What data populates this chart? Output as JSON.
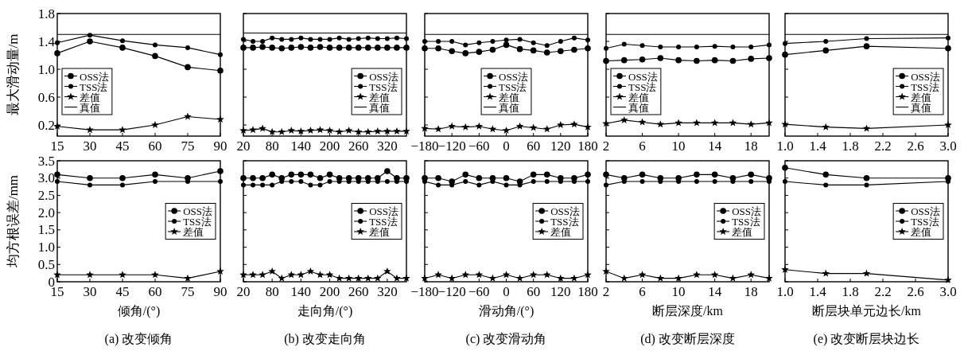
{
  "chart_data": [
    {
      "type": "line",
      "ylabel": "最大滑动量/m",
      "x": [
        15,
        30,
        45,
        60,
        75,
        90
      ],
      "xlim": [
        15,
        90
      ],
      "xticks": [
        15,
        30,
        45,
        60,
        75,
        90
      ],
      "ylim": [
        0.04,
        1.8
      ],
      "yticks": [
        0.2,
        0.6,
        {
          "value": 1,
          "label": "1.0"
        },
        1.4,
        1.8
      ],
      "legend": "lower left",
      "series": [
        {
          "name": "OSS法",
          "color": "#000000",
          "marker": "circle",
          "values": [
            1.23,
            1.4,
            1.31,
            1.19,
            1.03,
            0.98
          ]
        },
        {
          "name": "TSS法",
          "color": "#000000",
          "marker": "circle",
          "values": [
            1.38,
            1.49,
            1.41,
            1.35,
            1.31,
            1.21
          ]
        },
        {
          "name": "差值",
          "color": "#000000",
          "marker": "star",
          "values": [
            0.18,
            0.13,
            0.13,
            0.2,
            0.32,
            0.28
          ]
        },
        {
          "name": "真值",
          "color": "#000000",
          "marker": "none",
          "values": [
            1.5,
            1.5,
            1.5,
            1.5,
            1.5,
            1.5
          ]
        }
      ]
    },
    {
      "type": "line",
      "tick_labels": "x",
      "x": [
        20,
        40,
        60,
        80,
        100,
        120,
        140,
        160,
        180,
        200,
        220,
        240,
        260,
        280,
        300,
        320,
        340,
        360
      ],
      "xlim": [
        20,
        360
      ],
      "xticks": [
        20,
        80,
        140,
        200,
        260,
        320
      ],
      "ylim": [
        0.04,
        1.8
      ],
      "yticks": [
        0.2,
        0.6,
        1,
        1.4,
        1.8
      ],
      "legend": "lower right",
      "series": [
        {
          "name": "OSS法",
          "color": "#000000",
          "marker": "circle",
          "values": [
            1.31,
            1.31,
            1.32,
            1.31,
            1.3,
            1.31,
            1.32,
            1.31,
            1.32,
            1.31,
            1.31,
            1.31,
            1.31,
            1.31,
            1.31,
            1.31,
            1.31,
            1.31
          ]
        },
        {
          "name": "TSS法",
          "color": "#000000",
          "marker": "circle",
          "values": [
            1.43,
            1.4,
            1.4,
            1.45,
            1.43,
            1.43,
            1.45,
            1.43,
            1.43,
            1.43,
            1.45,
            1.43,
            1.44,
            1.45,
            1.44,
            1.44,
            1.45,
            1.44
          ]
        },
        {
          "name": "差值",
          "color": "#000000",
          "marker": "star",
          "values": [
            0.12,
            0.13,
            0.15,
            0.1,
            0.1,
            0.12,
            0.11,
            0.12,
            0.13,
            0.12,
            0.1,
            0.12,
            0.1,
            0.1,
            0.11,
            0.11,
            0.11,
            0.11
          ]
        },
        {
          "name": "真值",
          "color": "#000000",
          "marker": "none",
          "values": [
            1.52,
            1.52,
            1.52,
            1.52,
            1.52,
            1.52,
            1.52,
            1.52,
            1.52,
            1.52,
            1.52,
            1.52,
            1.52,
            1.52,
            1.52,
            1.52,
            1.52,
            1.52
          ]
        }
      ]
    },
    {
      "type": "line",
      "tick_labels": "x",
      "x": [
        -180,
        -150,
        -120,
        -90,
        -60,
        -30,
        0,
        30,
        60,
        90,
        120,
        150,
        180
      ],
      "xlim": [
        -180,
        180
      ],
      "xticks": [
        {
          "value": -180,
          "label": "−180"
        },
        {
          "value": -120,
          "label": "−120"
        },
        {
          "value": -60,
          "label": "−60"
        },
        0,
        60,
        120,
        180
      ],
      "ylim": [
        0.04,
        1.8
      ],
      "yticks": [
        0.2,
        0.6,
        1,
        1.4,
        1.8
      ],
      "legend": "lower center",
      "series": [
        {
          "name": "OSS法",
          "color": "#000000",
          "marker": "circle",
          "values": [
            1.3,
            1.3,
            1.26,
            1.23,
            1.25,
            1.28,
            1.35,
            1.29,
            1.27,
            1.24,
            1.26,
            1.28,
            1.3
          ]
        },
        {
          "name": "TSS法",
          "color": "#000000",
          "marker": "circle",
          "values": [
            1.4,
            1.4,
            1.4,
            1.35,
            1.38,
            1.4,
            1.42,
            1.43,
            1.38,
            1.34,
            1.4,
            1.45,
            1.42
          ]
        },
        {
          "name": "差值",
          "color": "#000000",
          "marker": "star",
          "values": [
            0.15,
            0.14,
            0.18,
            0.17,
            0.18,
            0.14,
            0.12,
            0.18,
            0.16,
            0.14,
            0.2,
            0.21,
            0.17
          ]
        },
        {
          "name": "真值",
          "color": "#000000",
          "marker": "none",
          "values": [
            1.5,
            1.5,
            1.5,
            1.5,
            1.5,
            1.5,
            1.5,
            1.5,
            1.5,
            1.5,
            1.5,
            1.5,
            1.5
          ]
        }
      ]
    },
    {
      "type": "line",
      "tick_labels": "x",
      "x": [
        2,
        4,
        6,
        8,
        10,
        12,
        14,
        16,
        18,
        20
      ],
      "xlim": [
        2,
        20
      ],
      "xticks": [
        2,
        6,
        10,
        14,
        18
      ],
      "ylim": [
        0.04,
        1.8
      ],
      "yticks": [
        0.2,
        0.6,
        1,
        1.4,
        1.8
      ],
      "legend": "lower left",
      "series": [
        {
          "name": "OSS法",
          "color": "#000000",
          "marker": "circle",
          "values": [
            1.12,
            1.13,
            1.14,
            1.16,
            1.13,
            1.12,
            1.13,
            1.12,
            1.15,
            1.16
          ]
        },
        {
          "name": "TSS法",
          "color": "#000000",
          "marker": "circle",
          "values": [
            1.3,
            1.36,
            1.34,
            1.32,
            1.32,
            1.32,
            1.33,
            1.32,
            1.32,
            1.35
          ]
        },
        {
          "name": "差值",
          "color": "#000000",
          "marker": "star",
          "values": [
            0.22,
            0.27,
            0.24,
            0.21,
            0.23,
            0.23,
            0.23,
            0.23,
            0.21,
            0.23
          ]
        },
        {
          "name": "真值",
          "color": "#000000",
          "marker": "none",
          "values": [
            1.5,
            1.5,
            1.5,
            1.5,
            1.5,
            1.5,
            1.5,
            1.5,
            1.5,
            1.5
          ]
        }
      ]
    },
    {
      "type": "line",
      "tick_labels": "x",
      "x": [
        1,
        1.5,
        2,
        3
      ],
      "xlim": [
        1,
        3
      ],
      "xticks": [
        {
          "value": 1,
          "label": "1.0"
        },
        1.4,
        1.8,
        2.2,
        2.6,
        {
          "value": 3,
          "label": "3.0"
        }
      ],
      "ylim": [
        0.04,
        1.8
      ],
      "yticks": [
        0.2,
        0.6,
        1,
        1.4,
        1.8
      ],
      "legend": "lower right",
      "series": [
        {
          "name": "OSS法",
          "color": "#000000",
          "marker": "circle",
          "values": [
            1.21,
            1.27,
            1.33,
            1.3
          ]
        },
        {
          "name": "TSS法",
          "color": "#000000",
          "marker": "circle",
          "values": [
            1.37,
            1.4,
            1.44,
            1.45
          ]
        },
        {
          "name": "差值",
          "color": "#000000",
          "marker": "star",
          "values": [
            0.21,
            0.17,
            0.15,
            0.2
          ]
        },
        {
          "name": "真值",
          "color": "#000000",
          "marker": "none",
          "values": [
            1.5,
            1.5,
            1.5,
            1.5
          ]
        }
      ]
    },
    {
      "type": "line",
      "ylabel": "均方根误差/mm",
      "xlabel": "倾角/(°)",
      "annotations": [
        "(a) 改变倾角"
      ],
      "x": [
        15,
        30,
        45,
        60,
        75,
        90
      ],
      "xlim": [
        15,
        90
      ],
      "xticks": [
        15,
        30,
        45,
        60,
        75,
        90
      ],
      "ylim": [
        0,
        3.5
      ],
      "yticks": [
        0,
        0.5,
        {
          "value": 1,
          "label": "1.0"
        },
        1.5,
        {
          "value": 2,
          "label": "2.0"
        },
        2.5,
        {
          "value": 3,
          "label": "3.0"
        },
        3.5
      ],
      "legend": "center right",
      "series": [
        {
          "name": "OSS法",
          "color": "#000000",
          "marker": "circle",
          "values": [
            3.1,
            3.0,
            3.0,
            3.1,
            3.0,
            3.2
          ]
        },
        {
          "name": "TSS法",
          "color": "#000000",
          "marker": "circle",
          "values": [
            2.9,
            2.8,
            2.8,
            2.9,
            2.9,
            2.9
          ]
        },
        {
          "name": "差值",
          "color": "#000000",
          "marker": "star",
          "values": [
            0.2,
            0.2,
            0.2,
            0.2,
            0.1,
            0.3
          ]
        }
      ]
    },
    {
      "type": "line",
      "tick_labels": "x",
      "xlabel": "走向角/(°)",
      "annotations": [
        "(b) 改变走向角"
      ],
      "x": [
        20,
        40,
        60,
        80,
        100,
        120,
        140,
        160,
        180,
        200,
        220,
        240,
        260,
        280,
        300,
        320,
        340,
        360
      ],
      "xlim": [
        20,
        360
      ],
      "xticks": [
        20,
        80,
        140,
        200,
        260,
        320
      ],
      "ylim": [
        0,
        3.5
      ],
      "yticks": [
        0,
        0.5,
        1,
        1.5,
        2,
        2.5,
        3,
        3.5
      ],
      "legend": "center right",
      "series": [
        {
          "name": "OSS法",
          "color": "#000000",
          "marker": "circle",
          "values": [
            3.0,
            3.0,
            3.0,
            3.1,
            3.0,
            3.1,
            3.1,
            3.1,
            3.0,
            3.1,
            3.0,
            3.0,
            3.0,
            3.0,
            3.0,
            3.2,
            3.0,
            3.0
          ]
        },
        {
          "name": "TSS法",
          "color": "#000000",
          "marker": "circle",
          "values": [
            2.8,
            2.8,
            2.8,
            2.8,
            2.9,
            2.9,
            2.9,
            2.8,
            2.8,
            2.9,
            2.9,
            2.9,
            2.9,
            2.9,
            2.9,
            2.9,
            2.9,
            2.9
          ]
        },
        {
          "name": "差值",
          "color": "#000000",
          "marker": "star",
          "values": [
            0.2,
            0.2,
            0.2,
            0.3,
            0.1,
            0.2,
            0.2,
            0.3,
            0.2,
            0.2,
            0.1,
            0.1,
            0.1,
            0.1,
            0.1,
            0.3,
            0.1,
            0.1
          ]
        }
      ]
    },
    {
      "type": "line",
      "tick_labels": "x",
      "xlabel": "滑动角/(°)",
      "annotations": [
        "(c) 改变滑动角"
      ],
      "x": [
        -180,
        -150,
        -120,
        -90,
        -60,
        -30,
        0,
        30,
        60,
        90,
        120,
        150,
        180
      ],
      "xlim": [
        -180,
        180
      ],
      "xticks": [
        {
          "value": -180,
          "label": "−180"
        },
        {
          "value": -120,
          "label": "−120"
        },
        {
          "value": -60,
          "label": "−60"
        },
        0,
        60,
        120,
        180
      ],
      "ylim": [
        0,
        3.5
      ],
      "yticks": [
        0,
        0.5,
        1,
        1.5,
        2,
        2.5,
        3,
        3.5
      ],
      "legend": "center right",
      "series": [
        {
          "name": "OSS法",
          "color": "#000000",
          "marker": "circle",
          "values": [
            3.0,
            3.0,
            2.9,
            3.1,
            3.0,
            3.0,
            3.0,
            2.9,
            3.1,
            3.1,
            3.0,
            3.0,
            3.1
          ]
        },
        {
          "name": "TSS法",
          "color": "#000000",
          "marker": "circle",
          "values": [
            2.9,
            2.8,
            2.8,
            2.9,
            2.8,
            2.9,
            2.8,
            2.8,
            2.9,
            2.9,
            2.9,
            2.9,
            2.9
          ]
        },
        {
          "name": "差值",
          "color": "#000000",
          "marker": "star",
          "values": [
            0.1,
            0.2,
            0.1,
            0.2,
            0.2,
            0.1,
            0.2,
            0.1,
            0.2,
            0.2,
            0.1,
            0.1,
            0.2
          ]
        }
      ]
    },
    {
      "type": "line",
      "tick_labels": "x",
      "xlabel": "断层深度/km",
      "annotations": [
        "(d) 改变断层深度"
      ],
      "x": [
        2,
        4,
        6,
        8,
        10,
        12,
        14,
        16,
        18,
        20
      ],
      "xlim": [
        2,
        20
      ],
      "xticks": [
        2,
        6,
        10,
        14,
        18
      ],
      "ylim": [
        0,
        3.5
      ],
      "yticks": [
        0,
        0.5,
        1,
        1.5,
        2,
        2.5,
        3,
        3.5
      ],
      "legend": "center right",
      "series": [
        {
          "name": "OSS法",
          "color": "#000000",
          "marker": "circle",
          "values": [
            3.1,
            3.0,
            3.1,
            3.0,
            3.0,
            3.1,
            3.1,
            3.0,
            3.1,
            3.0
          ]
        },
        {
          "name": "TSS法",
          "color": "#000000",
          "marker": "circle",
          "values": [
            2.8,
            2.9,
            2.9,
            2.9,
            2.9,
            2.9,
            2.9,
            2.9,
            2.9,
            2.9
          ]
        },
        {
          "name": "差值",
          "color": "#000000",
          "marker": "star",
          "values": [
            0.3,
            0.1,
            0.2,
            0.1,
            0.1,
            0.2,
            0.2,
            0.1,
            0.2,
            0.1
          ]
        }
      ]
    },
    {
      "type": "line",
      "tick_labels": "x",
      "xlabel": "断层块单元边长/km",
      "annotations": [
        "(e) 改变断层块边长"
      ],
      "x": [
        1,
        1.5,
        2,
        3
      ],
      "xlim": [
        1,
        3
      ],
      "xticks": [
        {
          "value": 1,
          "label": "1.0"
        },
        1.4,
        1.8,
        2.2,
        2.6,
        {
          "value": 3,
          "label": "3.0"
        }
      ],
      "ylim": [
        0,
        3.5
      ],
      "yticks": [
        0,
        0.5,
        1,
        1.5,
        2,
        2.5,
        3,
        3.5
      ],
      "legend": "center right",
      "series": [
        {
          "name": "OSS法",
          "color": "#000000",
          "marker": "circle",
          "values": [
            3.3,
            3.1,
            3.0,
            3.0
          ]
        },
        {
          "name": "TSS法",
          "color": "#000000",
          "marker": "circle",
          "values": [
            2.9,
            2.8,
            2.8,
            2.9
          ]
        },
        {
          "name": "差值",
          "color": "#000000",
          "marker": "star",
          "values": [
            0.35,
            0.24,
            0.24,
            0.05
          ]
        }
      ]
    }
  ]
}
